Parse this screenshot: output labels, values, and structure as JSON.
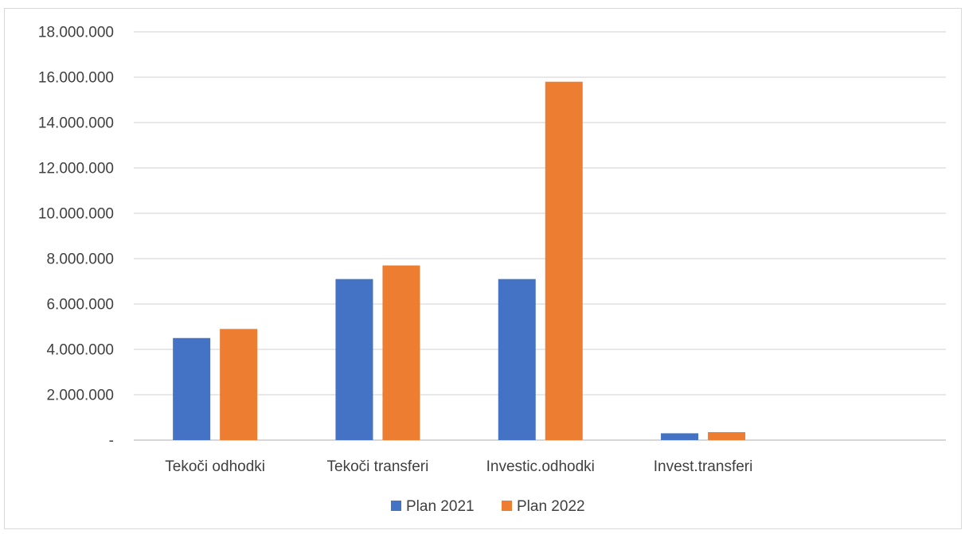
{
  "chart_data": {
    "type": "bar",
    "title": "",
    "xlabel": "",
    "ylabel": "",
    "categories": [
      "Tekoči odhodki",
      "Tekoči transferi",
      "Investic.odhodki",
      "Invest.transferi"
    ],
    "series": [
      {
        "name": "Plan 2021",
        "color": "#4472C4",
        "values": [
          4500000,
          7100000,
          7100000,
          300000
        ]
      },
      {
        "name": "Plan 2022",
        "color": "#ED7D31",
        "values": [
          4900000,
          7700000,
          15800000,
          350000
        ]
      }
    ],
    "ylim": [
      0,
      18000000
    ],
    "y_ticks": [
      0,
      2000000,
      4000000,
      6000000,
      8000000,
      10000000,
      12000000,
      14000000,
      16000000,
      18000000
    ],
    "y_tick_labels": [
      "-",
      "2.000.000",
      "4.000.000",
      "6.000.000",
      "8.000.000",
      "10.000.000",
      "12.000.000",
      "14.000.000",
      "16.000.000",
      "18.000.000"
    ],
    "grid": true,
    "legend_position": "bottom",
    "gridline_color": "#d9d9d9",
    "axis_color": "#bfbfbf"
  }
}
